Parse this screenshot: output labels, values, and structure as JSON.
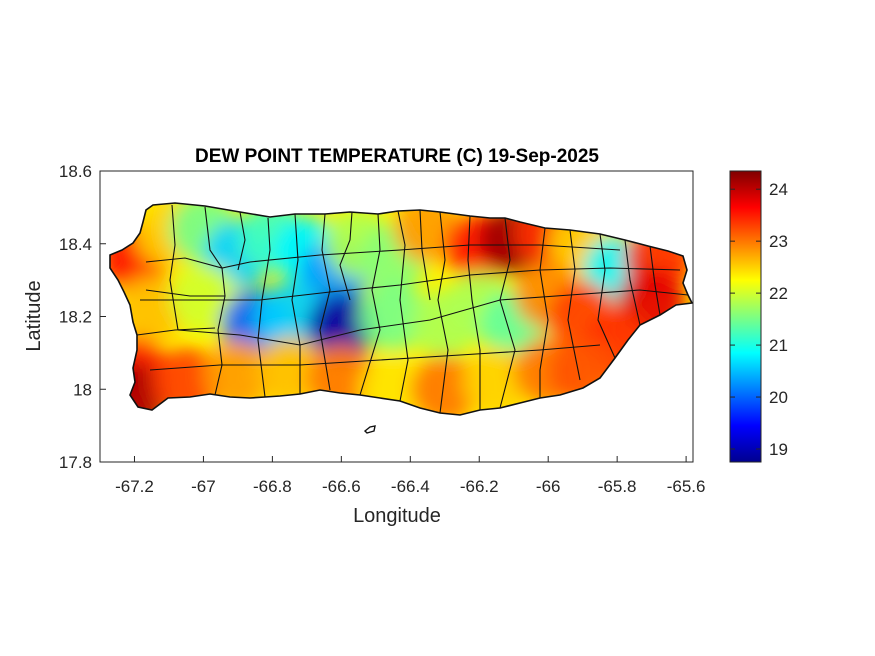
{
  "chart_data": {
    "type": "heatmap",
    "title": "DEW POINT TEMPERATURE (C) 19-Sep-2025",
    "xlabel": "Longitude",
    "ylabel": "Latitude",
    "xlim": [
      -67.3,
      -65.58
    ],
    "ylim": [
      17.8,
      18.6
    ],
    "x_ticks": [
      "-67.2",
      "-67",
      "-66.8",
      "-66.6",
      "-66.4",
      "-66.2",
      "-66",
      "-65.8",
      "-65.6"
    ],
    "y_ticks": [
      "17.8",
      "18",
      "18.2",
      "18.4",
      "18.6"
    ],
    "grid": false,
    "colormap": "jet",
    "colorbar": {
      "range": [
        18.75,
        24.35
      ],
      "ticks": [
        "19",
        "20",
        "21",
        "22",
        "23",
        "24"
      ],
      "placement": "right"
    },
    "samples": [
      {
        "lon": -67.2,
        "lat": 18.36,
        "value": 23.6
      },
      {
        "lon": -67.1,
        "lat": 18.43,
        "value": 22.5
      },
      {
        "lon": -67.0,
        "lat": 18.44,
        "value": 21.5
      },
      {
        "lon": -66.9,
        "lat": 18.37,
        "value": 20.6
      },
      {
        "lon": -66.8,
        "lat": 18.42,
        "value": 21.2
      },
      {
        "lon": -66.7,
        "lat": 18.38,
        "value": 20.8
      },
      {
        "lon": -66.62,
        "lat": 18.32,
        "value": 20.3
      },
      {
        "lon": -66.55,
        "lat": 18.4,
        "value": 21.8
      },
      {
        "lon": -66.45,
        "lat": 18.36,
        "value": 21.6
      },
      {
        "lon": -66.35,
        "lat": 18.44,
        "value": 22.8
      },
      {
        "lon": -66.2,
        "lat": 18.39,
        "value": 23.6
      },
      {
        "lon": -66.1,
        "lat": 18.41,
        "value": 24.2
      },
      {
        "lon": -66.0,
        "lat": 18.43,
        "value": 23.4
      },
      {
        "lon": -65.9,
        "lat": 18.4,
        "value": 22.5
      },
      {
        "lon": -65.8,
        "lat": 18.33,
        "value": 20.8
      },
      {
        "lon": -65.68,
        "lat": 18.36,
        "value": 23.4
      },
      {
        "lon": -65.7,
        "lat": 18.24,
        "value": 23.8
      },
      {
        "lon": -67.15,
        "lat": 18.22,
        "value": 22.6
      },
      {
        "lon": -67.0,
        "lat": 18.25,
        "value": 22.0
      },
      {
        "lon": -66.85,
        "lat": 18.18,
        "value": 20.0
      },
      {
        "lon": -66.75,
        "lat": 18.2,
        "value": 20.6
      },
      {
        "lon": -66.6,
        "lat": 18.17,
        "value": 19.0
      },
      {
        "lon": -66.45,
        "lat": 18.2,
        "value": 21.5
      },
      {
        "lon": -66.3,
        "lat": 18.18,
        "value": 21.8
      },
      {
        "lon": -66.2,
        "lat": 18.23,
        "value": 21.8
      },
      {
        "lon": -66.1,
        "lat": 18.18,
        "value": 21.4
      },
      {
        "lon": -66.0,
        "lat": 18.26,
        "value": 22.9
      },
      {
        "lon": -65.9,
        "lat": 18.2,
        "value": 23.3
      },
      {
        "lon": -65.8,
        "lat": 18.12,
        "value": 23.4
      },
      {
        "lon": -67.2,
        "lat": 18.05,
        "value": 23.5
      },
      {
        "lon": -67.2,
        "lat": 17.98,
        "value": 24.1
      },
      {
        "lon": -67.05,
        "lat": 18.02,
        "value": 23.3
      },
      {
        "lon": -66.9,
        "lat": 18.04,
        "value": 22.8
      },
      {
        "lon": -66.75,
        "lat": 18.05,
        "value": 22.6
      },
      {
        "lon": -66.6,
        "lat": 18.03,
        "value": 23.0
      },
      {
        "lon": -66.45,
        "lat": 18.0,
        "value": 22.4
      },
      {
        "lon": -66.3,
        "lat": 18.0,
        "value": 23.0
      },
      {
        "lon": -66.15,
        "lat": 18.02,
        "value": 22.5
      },
      {
        "lon": -66.0,
        "lat": 18.05,
        "value": 23.0
      },
      {
        "lon": -65.9,
        "lat": 18.05,
        "value": 23.2
      }
    ]
  }
}
